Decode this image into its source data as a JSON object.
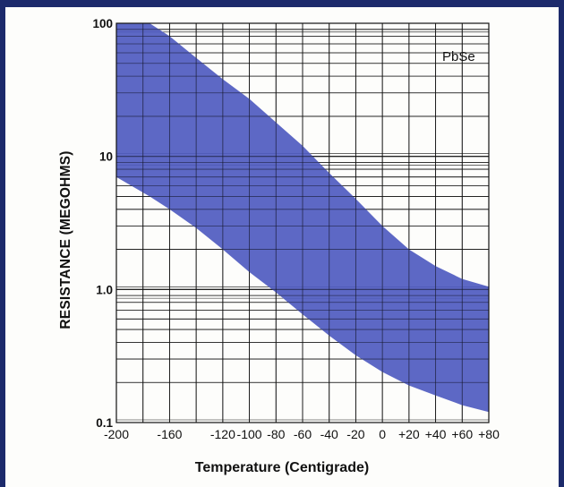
{
  "colors": {
    "frame": "#1c2a6b",
    "band": "#4f5bc0",
    "grid": "#111111"
  },
  "chart_data": {
    "type": "area",
    "xlabel": "Temperature (Centigrade)",
    "ylabel": "RESISTANCE (MEGOHMS)",
    "annotation": "PbSe",
    "xlim": [
      -200,
      80
    ],
    "ylim": [
      0.1,
      100
    ],
    "y_scale": "log",
    "grid": true,
    "x_ticks": [
      "-200",
      "-160",
      "-120",
      "-100",
      "-80",
      "-60",
      "-40",
      "-20",
      "0",
      "+20",
      "+40",
      "+60",
      "+80"
    ],
    "x_tick_values": [
      -200,
      -160,
      -120,
      -100,
      -80,
      -60,
      -40,
      -20,
      0,
      20,
      40,
      60,
      80
    ],
    "y_ticks": [
      "100",
      "10",
      "1.0",
      "0.1"
    ],
    "y_tick_values": [
      100,
      10,
      1,
      0.1
    ],
    "series": [
      {
        "x": [
          -200,
          -175,
          -160,
          -140,
          -120,
          -100,
          -80,
          -60,
          -40,
          -20,
          0,
          20,
          40,
          60,
          80
        ],
        "upper": [
          100,
          100,
          80,
          55,
          38,
          27,
          18,
          12,
          7.5,
          4.8,
          3.0,
          2.0,
          1.5,
          1.2,
          1.05
        ],
        "lower": [
          7.0,
          5.0,
          4.0,
          2.9,
          2.0,
          1.35,
          0.95,
          0.65,
          0.45,
          0.32,
          0.24,
          0.19,
          0.16,
          0.135,
          0.12
        ]
      }
    ]
  }
}
